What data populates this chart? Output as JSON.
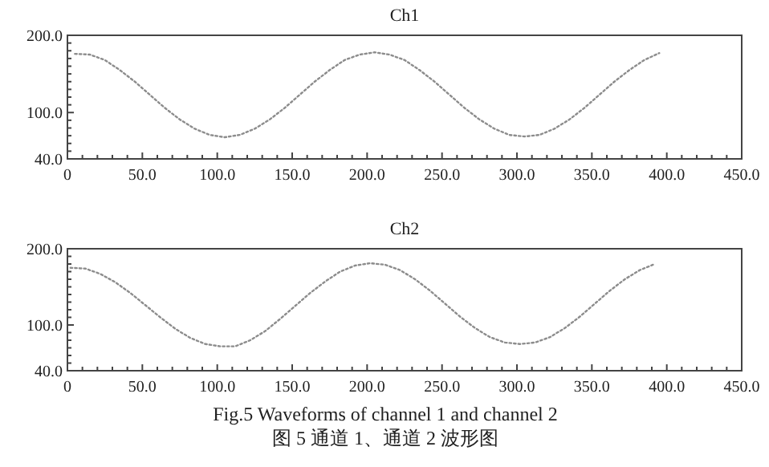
{
  "chart_data": [
    {
      "type": "line",
      "title": "Ch1",
      "line_style": "dotted",
      "marker": "none",
      "grid": false,
      "x": [
        5,
        15,
        25,
        35,
        45,
        55,
        65,
        75,
        85,
        95,
        105,
        115,
        125,
        135,
        145,
        155,
        165,
        175,
        185,
        195,
        205,
        215,
        225,
        235,
        245,
        255,
        265,
        275,
        285,
        295,
        305,
        315,
        325,
        335,
        345,
        355,
        365,
        375,
        385,
        395
      ],
      "series": [
        {
          "color": "#8c8c8c",
          "values": [
            176,
            175,
            168,
            155,
            140,
            123,
            106,
            91,
            79,
            71,
            68,
            71,
            79,
            91,
            106,
            123,
            140,
            155,
            168,
            175,
            178,
            175,
            168,
            155,
            140,
            123,
            106,
            91,
            79,
            71,
            69,
            71,
            79,
            91,
            106,
            123,
            140,
            155,
            168,
            177
          ]
        }
      ],
      "xlim": [
        0,
        450
      ],
      "ylim": [
        40,
        200
      ],
      "xticks": [
        0,
        {
          "value": 10,
          "label": null
        },
        {
          "value": 20,
          "label": null
        },
        {
          "value": 30,
          "label": null
        },
        {
          "value": 40,
          "label": null
        },
        {
          "value": 50,
          "label": "50.0"
        },
        {
          "value": 60,
          "label": null
        },
        {
          "value": 70,
          "label": null
        },
        {
          "value": 80,
          "label": null
        },
        {
          "value": 90,
          "label": null
        },
        {
          "value": 100,
          "label": "100.0"
        },
        {
          "value": 110,
          "label": null
        },
        {
          "value": 120,
          "label": null
        },
        {
          "value": 130,
          "label": null
        },
        {
          "value": 140,
          "label": null
        },
        {
          "value": 150,
          "label": "150.0"
        },
        {
          "value": 160,
          "label": null
        },
        {
          "value": 170,
          "label": null
        },
        {
          "value": 180,
          "label": null
        },
        {
          "value": 190,
          "label": null
        },
        {
          "value": 200,
          "label": "200.0"
        },
        {
          "value": 210,
          "label": null
        },
        {
          "value": 220,
          "label": null
        },
        {
          "value": 230,
          "label": null
        },
        {
          "value": 240,
          "label": null
        },
        {
          "value": 250,
          "label": "250.0"
        },
        {
          "value": 260,
          "label": null
        },
        {
          "value": 270,
          "label": null
        },
        {
          "value": 280,
          "label": null
        },
        {
          "value": 290,
          "label": null
        },
        {
          "value": 300,
          "label": "300.0"
        },
        {
          "value": 310,
          "label": null
        },
        {
          "value": 320,
          "label": null
        },
        {
          "value": 330,
          "label": null
        },
        {
          "value": 340,
          "label": null
        },
        {
          "value": 350,
          "label": "350.0"
        },
        {
          "value": 360,
          "label": null
        },
        {
          "value": 370,
          "label": null
        },
        {
          "value": 380,
          "label": null
        },
        {
          "value": 390,
          "label": null
        },
        {
          "value": 400,
          "label": "400.0"
        },
        {
          "value": 410,
          "label": null
        },
        {
          "value": 420,
          "label": null
        },
        {
          "value": 430,
          "label": null
        },
        {
          "value": 440,
          "label": null
        },
        {
          "value": 450,
          "label": "450.0"
        }
      ],
      "yticks": [
        {
          "value": 40,
          "label": "40.0"
        },
        {
          "value": 50,
          "label": null
        },
        {
          "value": 60,
          "label": null
        },
        {
          "value": 70,
          "label": null
        },
        {
          "value": 80,
          "label": null
        },
        {
          "value": 90,
          "label": null
        },
        {
          "value": 100,
          "label": "100.0"
        },
        {
          "value": 110,
          "label": null
        },
        {
          "value": 120,
          "label": null
        },
        {
          "value": 130,
          "label": null
        },
        {
          "value": 140,
          "label": null
        },
        {
          "value": 150,
          "label": null
        },
        {
          "value": 160,
          "label": null
        },
        {
          "value": 170,
          "label": null
        },
        {
          "value": 180,
          "label": null
        },
        {
          "value": 190,
          "label": null
        },
        {
          "value": 200,
          "label": "200.0"
        }
      ]
    },
    {
      "type": "line",
      "title": "Ch2",
      "line_style": "dotted",
      "marker": "none",
      "grid": false,
      "x": [
        2,
        12,
        22,
        32,
        42,
        52,
        62,
        72,
        82,
        92,
        102,
        112,
        122,
        132,
        142,
        152,
        162,
        172,
        182,
        192,
        202,
        212,
        222,
        232,
        242,
        252,
        262,
        272,
        282,
        292,
        302,
        312,
        322,
        332,
        342,
        352,
        362,
        372,
        382,
        392
      ],
      "series": [
        {
          "color": "#8c8c8c",
          "values": [
            175,
            174,
            167,
            156,
            142,
            126,
            110,
            95,
            83,
            75,
            72,
            72,
            80,
            92,
            108,
            125,
            142,
            157,
            170,
            178,
            181,
            179,
            172,
            160,
            145,
            128,
            111,
            96,
            84,
            77,
            75,
            77,
            84,
            96,
            111,
            128,
            145,
            160,
            172,
            180
          ]
        }
      ],
      "xlim": [
        0,
        450
      ],
      "ylim": [
        40,
        200
      ],
      "xticks": [
        0,
        {
          "value": 10,
          "label": null
        },
        {
          "value": 20,
          "label": null
        },
        {
          "value": 30,
          "label": null
        },
        {
          "value": 40,
          "label": null
        },
        {
          "value": 50,
          "label": "50.0"
        },
        {
          "value": 60,
          "label": null
        },
        {
          "value": 70,
          "label": null
        },
        {
          "value": 80,
          "label": null
        },
        {
          "value": 90,
          "label": null
        },
        {
          "value": 100,
          "label": "100.0"
        },
        {
          "value": 110,
          "label": null
        },
        {
          "value": 120,
          "label": null
        },
        {
          "value": 130,
          "label": null
        },
        {
          "value": 140,
          "label": null
        },
        {
          "value": 150,
          "label": "150.0"
        },
        {
          "value": 160,
          "label": null
        },
        {
          "value": 170,
          "label": null
        },
        {
          "value": 180,
          "label": null
        },
        {
          "value": 190,
          "label": null
        },
        {
          "value": 200,
          "label": "200.0"
        },
        {
          "value": 210,
          "label": null
        },
        {
          "value": 220,
          "label": null
        },
        {
          "value": 230,
          "label": null
        },
        {
          "value": 240,
          "label": null
        },
        {
          "value": 250,
          "label": "250.0"
        },
        {
          "value": 260,
          "label": null
        },
        {
          "value": 270,
          "label": null
        },
        {
          "value": 280,
          "label": null
        },
        {
          "value": 290,
          "label": null
        },
        {
          "value": 300,
          "label": "300.0"
        },
        {
          "value": 310,
          "label": null
        },
        {
          "value": 320,
          "label": null
        },
        {
          "value": 330,
          "label": null
        },
        {
          "value": 340,
          "label": null
        },
        {
          "value": 350,
          "label": "350.0"
        },
        {
          "value": 360,
          "label": null
        },
        {
          "value": 370,
          "label": null
        },
        {
          "value": 380,
          "label": null
        },
        {
          "value": 390,
          "label": null
        },
        {
          "value": 400,
          "label": "400.0"
        },
        {
          "value": 410,
          "label": null
        },
        {
          "value": 420,
          "label": null
        },
        {
          "value": 430,
          "label": null
        },
        {
          "value": 440,
          "label": null
        },
        {
          "value": 450,
          "label": "450.0"
        }
      ],
      "yticks": [
        {
          "value": 40,
          "label": "40.0"
        },
        {
          "value": 50,
          "label": null
        },
        {
          "value": 60,
          "label": null
        },
        {
          "value": 70,
          "label": null
        },
        {
          "value": 80,
          "label": null
        },
        {
          "value": 90,
          "label": null
        },
        {
          "value": 100,
          "label": "100.0"
        },
        {
          "value": 110,
          "label": null
        },
        {
          "value": 120,
          "label": null
        },
        {
          "value": 130,
          "label": null
        },
        {
          "value": 140,
          "label": null
        },
        {
          "value": 150,
          "label": null
        },
        {
          "value": 160,
          "label": null
        },
        {
          "value": 170,
          "label": null
        },
        {
          "value": 180,
          "label": null
        },
        {
          "value": 190,
          "label": null
        },
        {
          "value": 200,
          "label": "200.0"
        }
      ],
      "annotations": [
        "Fig.5 Waveforms of channel 1 and channel 2",
        "图 5  通道 1、通道 2 波形图"
      ]
    }
  ]
}
